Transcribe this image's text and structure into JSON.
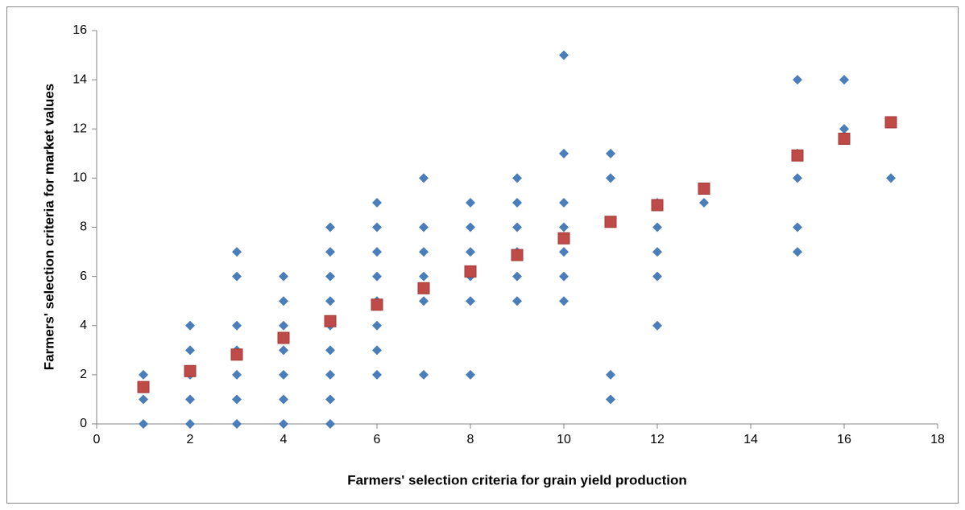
{
  "chart_data": {
    "type": "scatter",
    "x_label": "Farmers' selection criteria for grain yield production",
    "y_label": "Farmers' selection criteria for market values",
    "xlim": [
      0,
      18
    ],
    "xticks": [
      0,
      2,
      4,
      6,
      8,
      10,
      12,
      14,
      16,
      18
    ],
    "ylim": [
      0,
      16
    ],
    "yticks": [
      0,
      2,
      4,
      6,
      8,
      10,
      12,
      14,
      16
    ],
    "grid": false,
    "series": [
      {
        "color": "#4a7ebb",
        "marker": "diamond",
        "x": [
          1,
          1,
          1,
          2,
          2,
          2,
          2,
          2,
          3,
          3,
          3,
          3,
          3,
          3,
          3,
          4,
          4,
          4,
          4,
          4,
          4,
          4,
          5,
          5,
          5,
          5,
          5,
          5,
          5,
          5,
          5,
          6,
          6,
          6,
          6,
          6,
          6,
          6,
          6,
          7,
          7,
          7,
          7,
          7,
          7,
          8,
          8,
          8,
          8,
          8,
          8,
          9,
          9,
          9,
          9,
          9,
          9,
          10,
          10,
          10,
          10,
          10,
          10,
          10,
          11,
          11,
          11,
          11,
          12,
          12,
          12,
          12,
          12,
          13,
          15,
          15,
          15,
          15,
          15,
          16,
          16,
          17
        ],
        "values": [
          0,
          1,
          2,
          0,
          1,
          2,
          3,
          4,
          0,
          1,
          2,
          3,
          4,
          6,
          7,
          0,
          1,
          2,
          3,
          4,
          5,
          6,
          0,
          1,
          2,
          3,
          4,
          5,
          6,
          7,
          8,
          2,
          3,
          4,
          5,
          6,
          7,
          8,
          9,
          2,
          5,
          6,
          7,
          8,
          10,
          2,
          5,
          6,
          7,
          8,
          9,
          5,
          6,
          7,
          8,
          9,
          10,
          5,
          6,
          7,
          8,
          9,
          11,
          15,
          1,
          2,
          10,
          11,
          4,
          6,
          7,
          8,
          9,
          9,
          7,
          8,
          10,
          11,
          14,
          12,
          14,
          10
        ]
      },
      {
        "color": "#be4b48",
        "marker": "square",
        "x": [
          1,
          2,
          3,
          4,
          5,
          6,
          7,
          8,
          9,
          10,
          11,
          12,
          13,
          15,
          16,
          17
        ],
        "values": [
          1.5,
          2.15,
          2.82,
          3.5,
          4.18,
          4.85,
          5.52,
          6.2,
          6.87,
          7.55,
          8.22,
          8.9,
          9.57,
          10.92,
          11.6,
          12.27
        ]
      }
    ]
  }
}
